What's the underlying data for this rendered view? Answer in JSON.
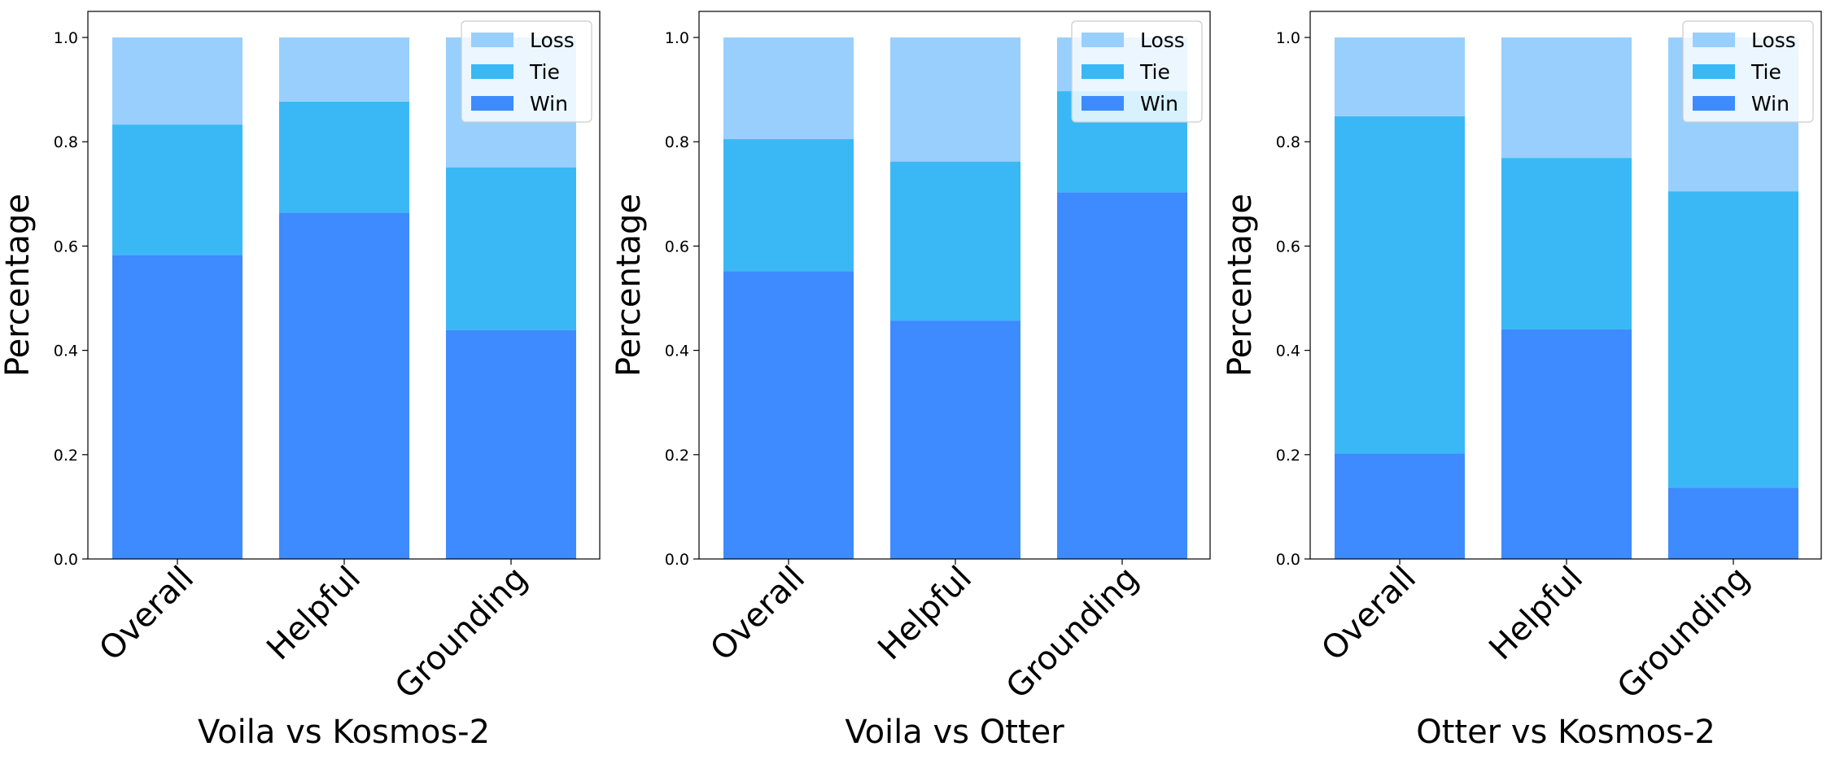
{
  "chart_data": [
    {
      "type": "bar",
      "stacked": true,
      "title": "",
      "xlabel": "Voila vs Kosmos-2",
      "ylabel": "Percentage",
      "ylim": [
        0,
        1.05
      ],
      "yticks": [
        "0.0",
        "0.2",
        "0.4",
        "0.6",
        "0.8",
        "1.0"
      ],
      "categories": [
        "Overall",
        "Helpful",
        "Grounding"
      ],
      "series": [
        {
          "name": "Win",
          "color": "#3d8bff",
          "values": [
            0.583,
            0.664,
            0.439
          ]
        },
        {
          "name": "Tie",
          "color": "#3ab8f5",
          "values": [
            0.25,
            0.213,
            0.312
          ]
        },
        {
          "name": "Loss",
          "color": "#99cffc",
          "values": [
            0.167,
            0.123,
            0.249
          ]
        }
      ],
      "legend": {
        "placement": "top-right",
        "order": [
          "Loss",
          "Tie",
          "Win"
        ]
      },
      "grid": false
    },
    {
      "type": "bar",
      "stacked": true,
      "title": "",
      "xlabel": "Voila vs Otter",
      "ylabel": "Percentage",
      "ylim": [
        0,
        1.05
      ],
      "yticks": [
        "0.0",
        "0.2",
        "0.4",
        "0.6",
        "0.8",
        "1.0"
      ],
      "categories": [
        "Overall",
        "Helpful",
        "Grounding"
      ],
      "series": [
        {
          "name": "Win",
          "color": "#3d8bff",
          "values": [
            0.552,
            0.457,
            0.703
          ]
        },
        {
          "name": "Tie",
          "color": "#3ab8f5",
          "values": [
            0.253,
            0.305,
            0.194
          ]
        },
        {
          "name": "Loss",
          "color": "#99cffc",
          "values": [
            0.195,
            0.238,
            0.103
          ]
        }
      ],
      "legend": {
        "placement": "top-right",
        "order": [
          "Loss",
          "Tie",
          "Win"
        ]
      },
      "grid": false
    },
    {
      "type": "bar",
      "stacked": true,
      "title": "",
      "xlabel": "Otter vs Kosmos-2",
      "ylabel": "Percentage",
      "ylim": [
        0,
        1.05
      ],
      "yticks": [
        "0.0",
        "0.2",
        "0.4",
        "0.6",
        "0.8",
        "1.0"
      ],
      "categories": [
        "Overall",
        "Helpful",
        "Grounding"
      ],
      "series": [
        {
          "name": "Win",
          "color": "#3d8bff",
          "values": [
            0.202,
            0.44,
            0.137
          ]
        },
        {
          "name": "Tie",
          "color": "#3ab8f5",
          "values": [
            0.647,
            0.329,
            0.568
          ]
        },
        {
          "name": "Loss",
          "color": "#99cffc",
          "values": [
            0.151,
            0.231,
            0.295
          ]
        }
      ],
      "legend": {
        "placement": "top-right",
        "order": [
          "Loss",
          "Tie",
          "Win"
        ]
      },
      "grid": false
    }
  ]
}
